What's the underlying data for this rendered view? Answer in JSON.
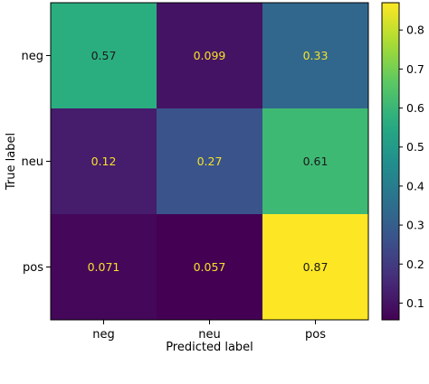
{
  "chart_data": {
    "type": "heatmap",
    "title": "",
    "xlabel": "Predicted label",
    "ylabel": "True label",
    "x_categories": [
      "neg",
      "neu",
      "pos"
    ],
    "y_categories": [
      "neg",
      "neu",
      "pos"
    ],
    "values": [
      [
        0.57,
        0.099,
        0.33
      ],
      [
        0.12,
        0.27,
        0.61
      ],
      [
        0.071,
        0.057,
        0.87
      ]
    ],
    "cell_labels": [
      [
        "0.57",
        "0.099",
        "0.33"
      ],
      [
        "0.12",
        "0.27",
        "0.61"
      ],
      [
        "0.071",
        "0.057",
        "0.87"
      ]
    ],
    "colormap": "viridis",
    "colorbar": {
      "vmin": 0.057,
      "vmax": 0.87,
      "ticks": [
        0.1,
        0.2,
        0.3,
        0.4,
        0.5,
        0.6,
        0.7,
        0.8
      ],
      "tick_labels": [
        "0.1",
        "0.2",
        "0.3",
        "0.4",
        "0.5",
        "0.6",
        "0.7",
        "0.8"
      ]
    },
    "grid": false
  }
}
